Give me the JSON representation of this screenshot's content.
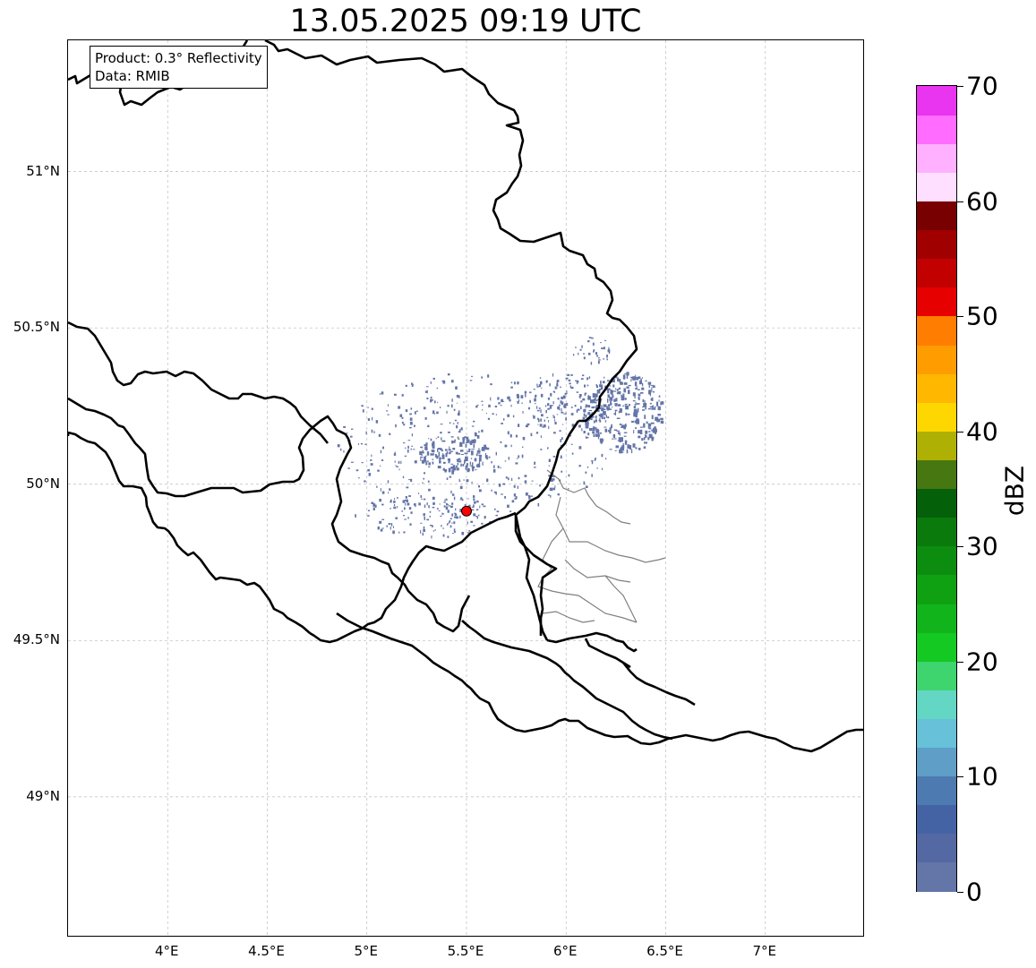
{
  "map": {
    "title": "13.05.2025 09:19 UTC",
    "info": {
      "line1": "Product: 0.3° Reflectivity",
      "line2": "Data: RMIB"
    },
    "lon_range": [
      3.5,
      7.5
    ],
    "lat_range": [
      48.55,
      51.42
    ],
    "lon_ticks": [
      "4°E",
      "4.5°E",
      "5°E",
      "5.5°E",
      "6°E",
      "6.5°E",
      "7°E"
    ],
    "lat_ticks": [
      "51°N",
      "50.5°N",
      "50°N",
      "49.5°N",
      "49°N"
    ],
    "radar_site": {
      "lon": 5.5,
      "lat": 49.914,
      "color": "#ff0000"
    },
    "colors": {
      "border": "#000000",
      "subdivision": "#808080",
      "echo": "#6475a8",
      "grid": "#bbbbbb"
    }
  },
  "colorbar": {
    "unit": "dBZ",
    "min": 0,
    "max": 70,
    "tick_labels": [
      "0",
      "10",
      "20",
      "30",
      "40",
      "50",
      "60",
      "70"
    ],
    "colors": [
      "#6475a8",
      "#5469a3",
      "#4463a5",
      "#4d7ab0",
      "#5e9ec7",
      "#66c1d9",
      "#63d6c4",
      "#3ed46e",
      "#13c922",
      "#12b41b",
      "#0fa112",
      "#0d8d10",
      "#097a0b",
      "#05600a",
      "#467710",
      "#aeb004",
      "#ffd700",
      "#ffb700",
      "#ff9c00",
      "#ff7d00",
      "#e60000",
      "#c20000",
      "#a00000",
      "#780000",
      "#ffdfff",
      "#ffb0ff",
      "#ff6cff",
      "#e934f0"
    ]
  }
}
